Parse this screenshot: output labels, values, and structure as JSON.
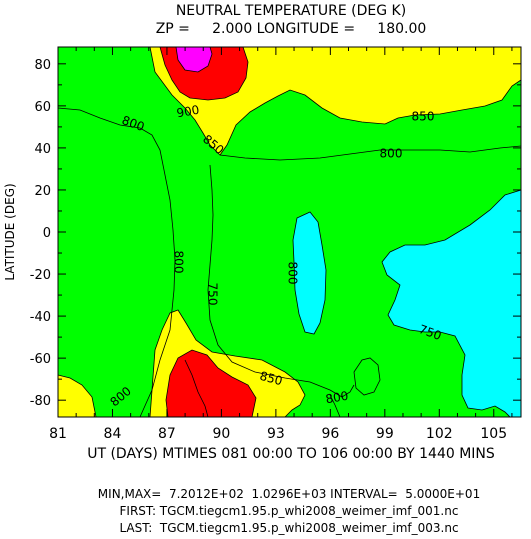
{
  "chart_data": {
    "type": "heatmap",
    "title": "NEUTRAL TEMPERATURE (DEG K)",
    "subtitle": "ZP =     2.000 LONGITUDE =     180.00",
    "xlabel": "UT (DAYS) MTIMES 081 00:00 TO 106 00:00 BY 1440 MINS",
    "ylabel": "LATITUDE (DEG)",
    "xlim": [
      81,
      106.5
    ],
    "ylim": [
      -88,
      88
    ],
    "x_ticks": [
      "81",
      "84",
      "87",
      "90",
      "93",
      "96",
      "99",
      "102",
      "105"
    ],
    "y_ticks": [
      "80",
      "60",
      "40",
      "20",
      "0",
      "-20",
      "-40",
      "-60",
      "-80"
    ],
    "contour_interval": 50,
    "contour_labels": [
      "800",
      "900",
      "850",
      "850",
      "800",
      "800",
      "750",
      "800",
      "750",
      "850",
      "800",
      "800"
    ],
    "color_levels": [
      {
        "range": "< 750",
        "color": "#00ffff"
      },
      {
        "range": "750-850",
        "color": "#00ff00"
      },
      {
        "range": "850-900",
        "color": "#ffff00"
      },
      {
        "range": "900-950",
        "color": "#ff0000"
      },
      {
        "range": "> 950",
        "color": "#ff00ff"
      }
    ],
    "min_max": "7.2012E+02  1.0296E+03",
    "interval": "5.0000E+01"
  },
  "footer": {
    "line1": "MIN,MAX=  7.2012E+02  1.0296E+03 INTERVAL=  5.0000E+01",
    "line2": "FIRST: TGCM.tiegcm1.95.p_whi2008_weimer_imf_001.nc",
    "line3": "LAST:  TGCM.tiegcm1.95.p_whi2008_weimer_imf_003.nc"
  }
}
